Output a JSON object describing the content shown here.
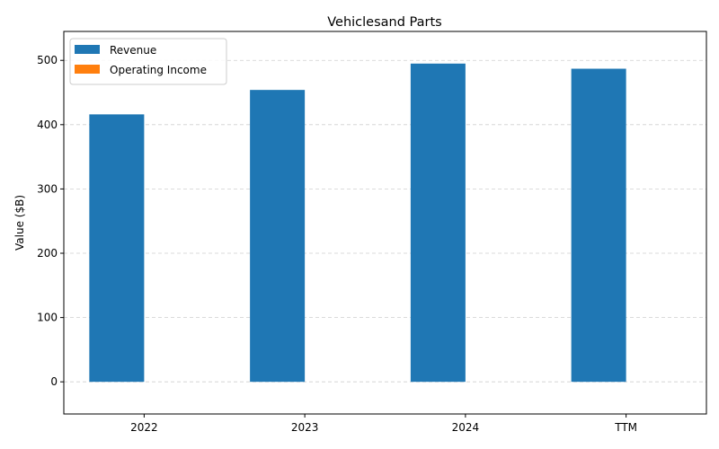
{
  "chart_data": {
    "type": "bar",
    "title": "Vehiclesand Parts",
    "xlabel": "",
    "ylabel": "Value ($B)",
    "categories": [
      "2022",
      "2023",
      "2024",
      "TTM"
    ],
    "series": [
      {
        "name": "Revenue",
        "values": [
          416,
          454,
          495,
          487
        ],
        "color": "#1f77b4"
      },
      {
        "name": "Operating Income",
        "values": [
          0,
          0,
          0,
          0
        ],
        "color": "#ff7f0e"
      }
    ],
    "ylim": [
      -50,
      545
    ],
    "yticks": [
      0,
      100,
      200,
      300,
      400,
      500
    ],
    "grid": true,
    "legend_position": "upper-left"
  }
}
